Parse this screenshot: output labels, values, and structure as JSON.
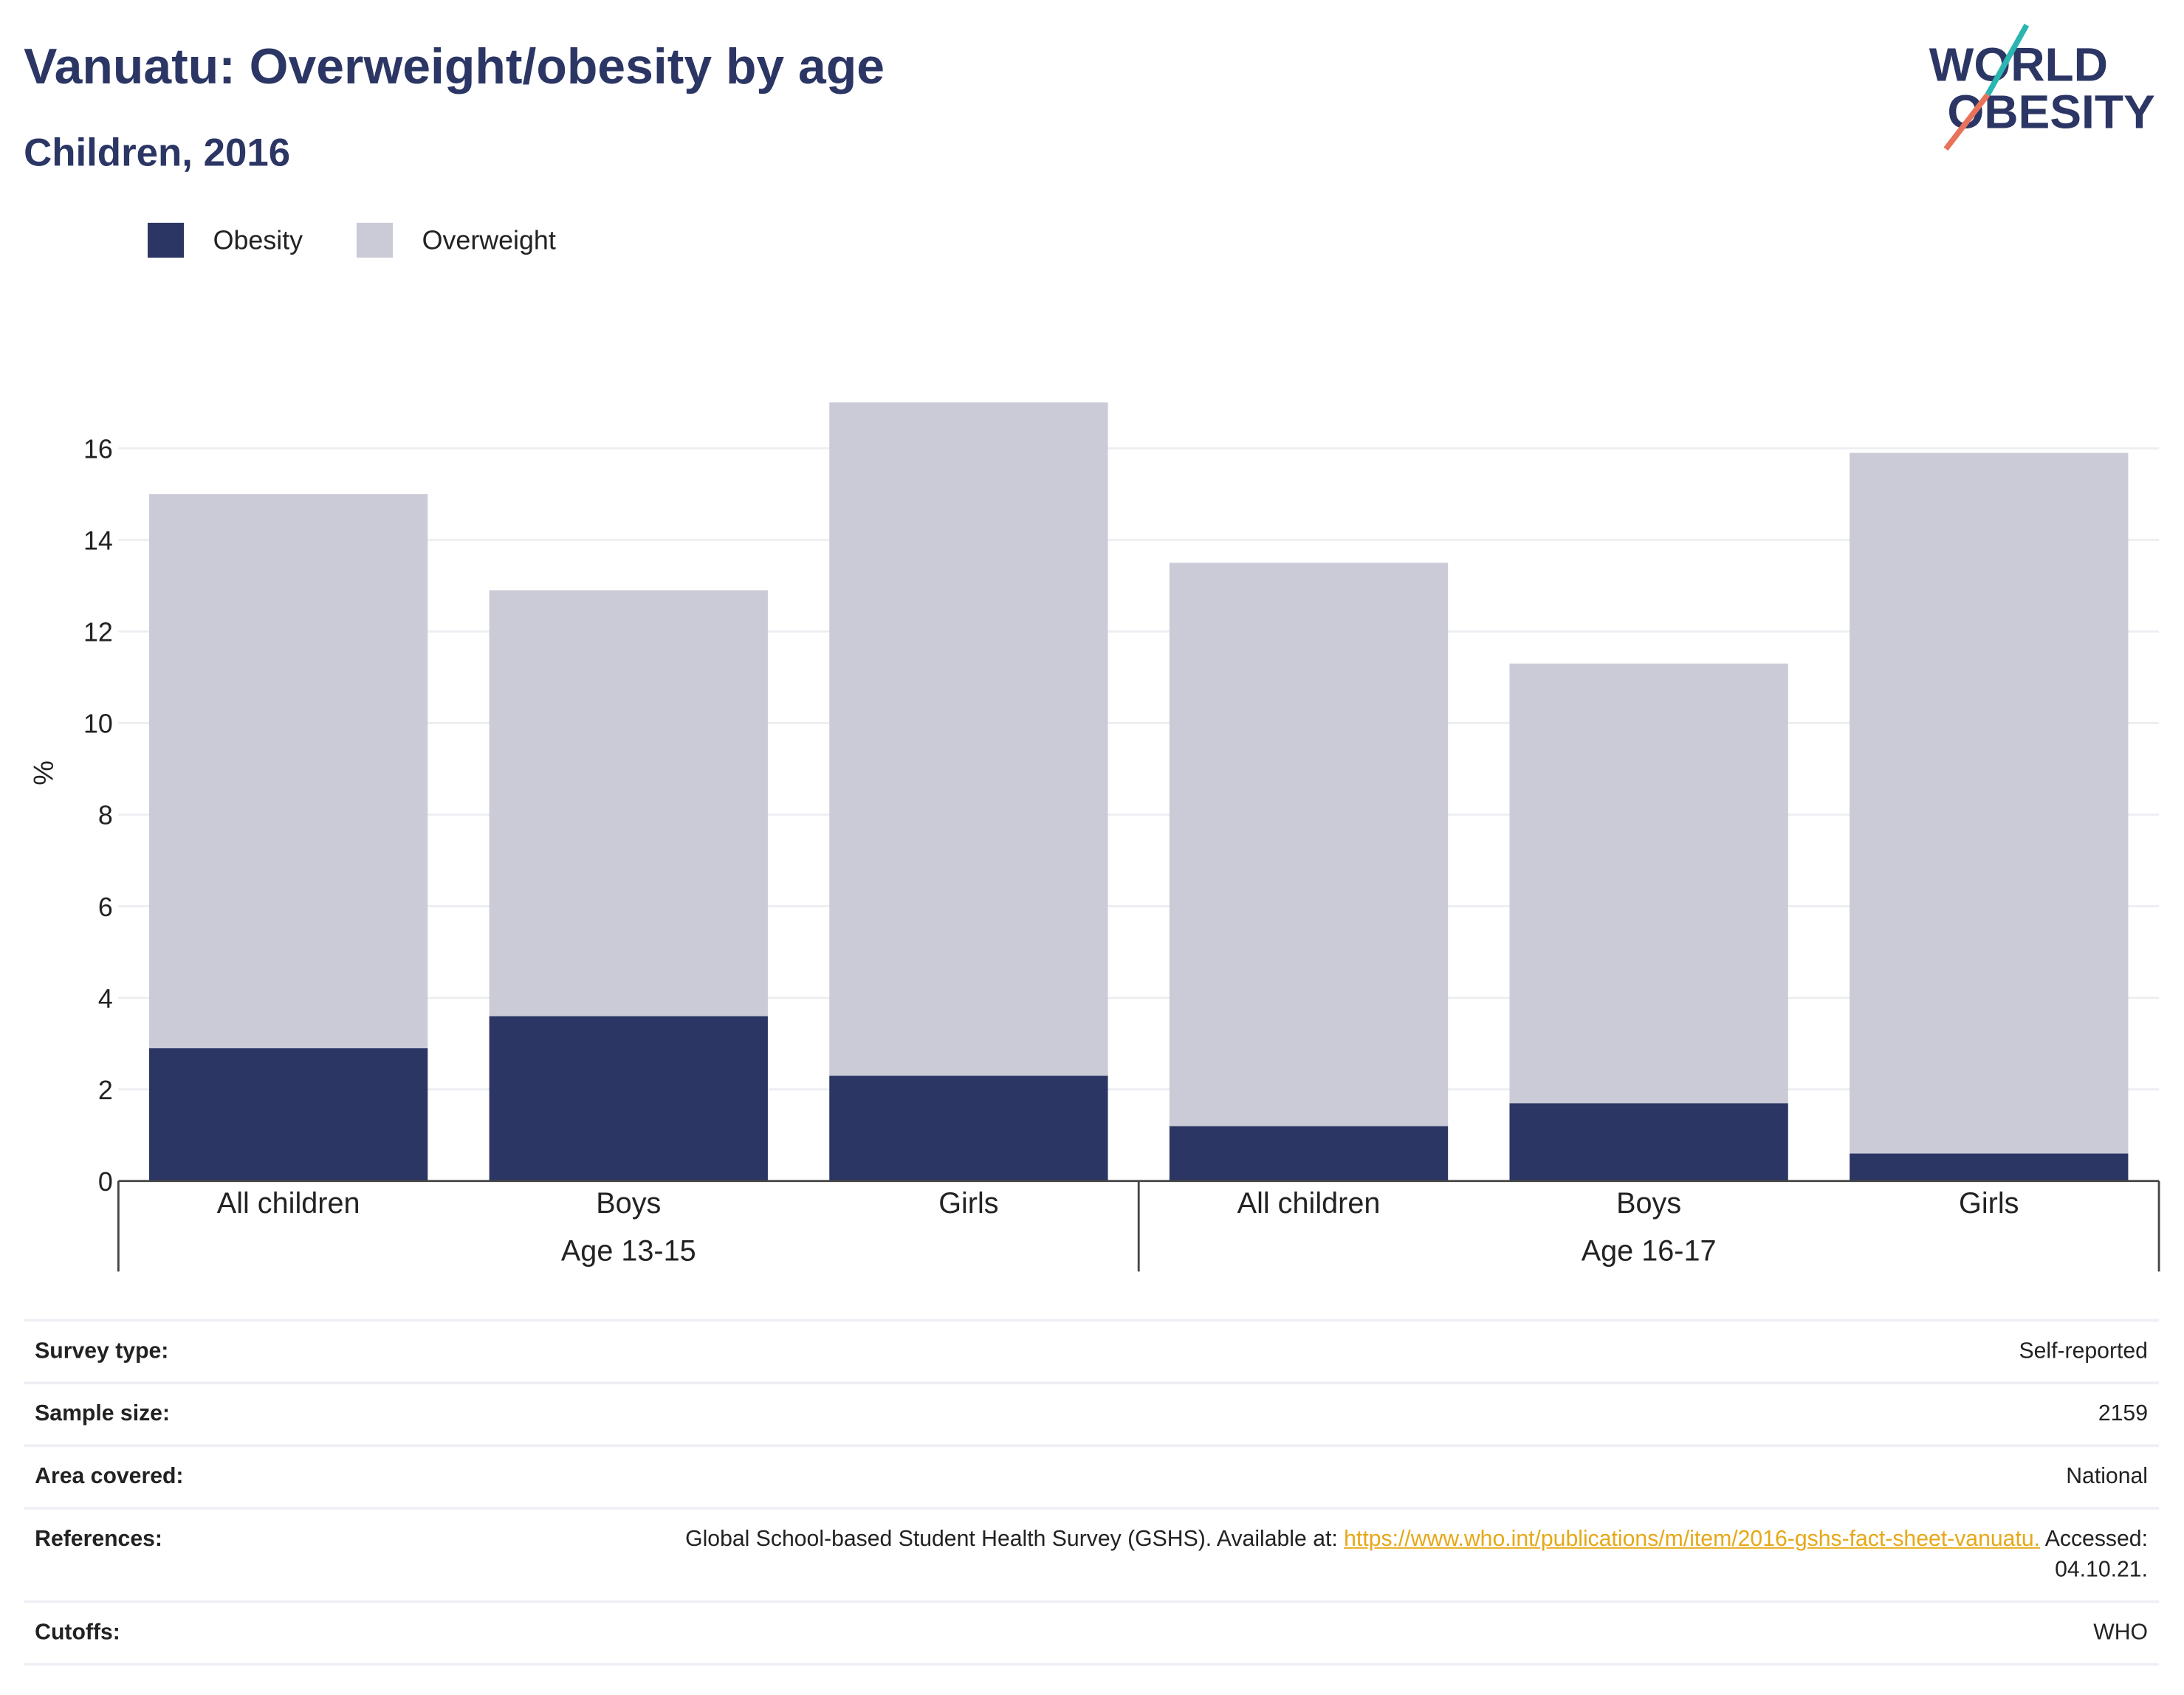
{
  "chart_data": {
    "type": "stacked-bar",
    "title": "Vanuatu: Overweight/obesity by age",
    "subtitle": "Children, 2016",
    "y_label": "%",
    "groups": [
      {
        "label": "Age 13-15",
        "categories": [
          "All children",
          "Boys",
          "Girls"
        ]
      },
      {
        "label": "Age 16-17",
        "categories": [
          "All children",
          "Boys",
          "Girls"
        ]
      }
    ],
    "series": [
      {
        "name": "Obesity",
        "color": "#2b3664",
        "values": [
          2.9,
          3.6,
          2.3,
          1.2,
          1.7,
          0.6
        ]
      },
      {
        "name": "Overweight",
        "color": "#cacbd7",
        "values": [
          12.1,
          9.3,
          14.7,
          12.3,
          9.6,
          15.3
        ]
      }
    ],
    "ylim": [
      0,
      17
    ],
    "yticks": [
      0,
      2,
      4,
      6,
      8,
      10,
      12,
      14,
      16
    ],
    "grid": true
  },
  "logo": {
    "line1": "WORLD",
    "line2": "OBESITY"
  },
  "table": {
    "rows": [
      {
        "label": "Survey type:",
        "value": "Self-reported"
      },
      {
        "label": "Sample size:",
        "value": "2159"
      },
      {
        "label": "Area covered:",
        "value": "National"
      },
      {
        "label": "References:",
        "text": "Global School-based Student Health Survey (GSHS). Available at: ",
        "link": "https://www.who.int/publications/m/item/2016-gshs-fact-sheet-vanuatu.",
        "after": " Accessed: 04.10.21."
      },
      {
        "label": "Cutoffs:",
        "value": "WHO"
      }
    ]
  }
}
